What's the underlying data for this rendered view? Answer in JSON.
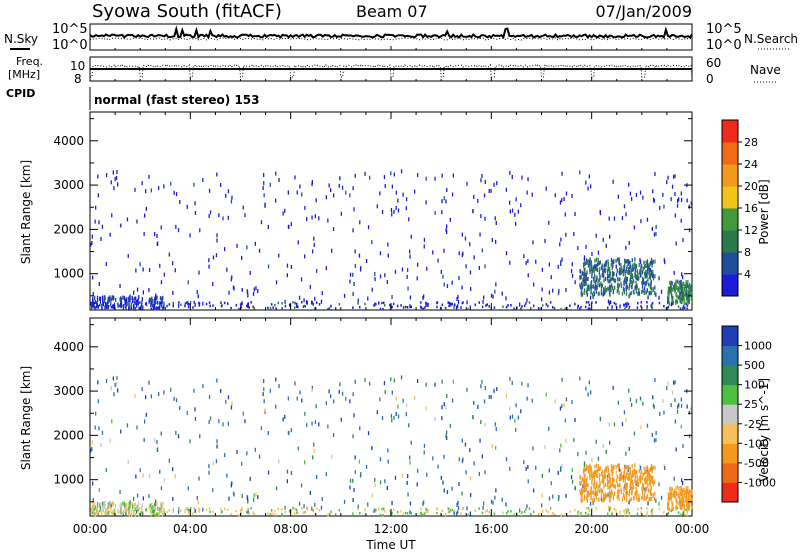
{
  "header": {
    "station": "Syowa South (fitACF)",
    "beam": "Beam 07",
    "date": "07/Jan/2009"
  },
  "side_labels": {
    "nsky": "N.Sky",
    "freq": "Freq.",
    "freq_unit": "[MHz]",
    "cpid": "CPID",
    "nsearch": "N.Search",
    "nave": "Nave"
  },
  "noise_axis": {
    "top": "10^5",
    "bottom": "10^0"
  },
  "freq_axis": {
    "top": "10",
    "bottom": "8"
  },
  "nave_axis": {
    "top": "60",
    "bottom": "0"
  },
  "mode_text": "normal (fast stereo) 153",
  "x_axis": {
    "label": "Time UT",
    "ticks": [
      "00:00",
      "04:00",
      "08:00",
      "12:00",
      "16:00",
      "20:00",
      "00:00"
    ]
  },
  "y_axis": {
    "label": "Slant Range [km]",
    "ticks": [
      "1000",
      "2000",
      "3000",
      "4000"
    ]
  },
  "power_colorbar": {
    "label": "Power [dB]",
    "tick_labels": [
      "4",
      "8",
      "12",
      "16",
      "20",
      "24",
      "28"
    ],
    "colors": [
      "#1b1bd8",
      "#1f4f9a",
      "#2b7a4c",
      "#3f9a3a",
      "#f2c318",
      "#f39a1e",
      "#f26a15",
      "#ee2a1a"
    ]
  },
  "velocity_colorbar": {
    "label": "Velocity [m s^-1]",
    "tick_labels": [
      "1000",
      "500",
      "100",
      "25",
      "-25",
      "-100",
      "-500",
      "-1000"
    ],
    "colors": [
      "#1f3fb5",
      "#2a6fb0",
      "#2f8a55",
      "#4ac23f",
      "#c8c8c8",
      "#f6c15c",
      "#f39a1e",
      "#ef6a18",
      "#ee2a1a"
    ]
  },
  "chart_data": {
    "type": "heatmap",
    "title": "Syowa South (fitACF) Beam 07 07/Jan/2009",
    "xlabel": "Time UT",
    "ylabel": "Slant Range [km]",
    "x_range_hours": [
      0,
      24
    ],
    "ylim_km": [
      180,
      4650
    ],
    "panels": [
      {
        "name": "Power [dB]",
        "color_range": [
          0,
          30
        ]
      },
      {
        "name": "Velocity [m s^-1]",
        "color_range": [
          -1000,
          1000
        ]
      }
    ],
    "scatter_regions": [
      {
        "t_start": 0,
        "t_end": 24,
        "r_start": 200,
        "r_end": 3300,
        "density": "sparse",
        "power_db": 4,
        "velocity": [
          -100,
          1000
        ]
      },
      {
        "t_start": 0,
        "t_end": 3,
        "r_start": 180,
        "r_end": 450,
        "density": "moderate",
        "power_db": 6,
        "velocity": [
          -100,
          100
        ]
      },
      {
        "t_start": 19.5,
        "t_end": 22.5,
        "r_start": 500,
        "r_end": 1300,
        "density": "dense",
        "power_db": 10,
        "velocity": [
          -500,
          -100
        ]
      },
      {
        "t_start": 23,
        "t_end": 24,
        "r_start": 300,
        "r_end": 800,
        "density": "moderate",
        "power_db": 12,
        "velocity": [
          -500,
          -25
        ]
      }
    ],
    "noise_sky_range": [
      1,
      100000
    ],
    "freq_mhz": 10,
    "nave_range": [
      0,
      60
    ]
  }
}
